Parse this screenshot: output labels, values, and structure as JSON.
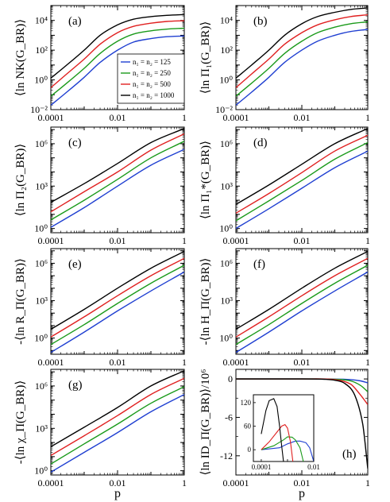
{
  "legend": [
    {
      "label": "n₁ = n₂ = 125",
      "color": "#1f3fd1"
    },
    {
      "label": "n₁ = n₂ = 250",
      "color": "#1a9a1a"
    },
    {
      "label": "n₁ = n₂ = 500",
      "color": "#e02020"
    },
    {
      "label": "n₁ = n₂ = 1000",
      "color": "#000000"
    }
  ],
  "xlabel": "p",
  "chart_data": [
    {
      "panel": "(a)",
      "type": "line",
      "ylabel": "⟨ln NK(G_BR)⟩",
      "xscale": "log",
      "yscale": "log",
      "xlim": [
        0.0001,
        1
      ],
      "ylim": [
        0.01,
        100000
      ],
      "xticks": [
        "0.0001",
        "0.01",
        "1"
      ],
      "yticks": [
        "10⁻²",
        "10⁰",
        "10²",
        "10⁴"
      ],
      "series": [
        {
          "name": "n₁ = n₂ = 125",
          "x": [
            0.0001,
            0.0003,
            0.001,
            0.003,
            0.01,
            0.03,
            0.1,
            0.3,
            1
          ],
          "y": [
            0.02,
            0.15,
            1.5,
            15,
            100,
            350,
            600,
            800,
            900
          ]
        },
        {
          "name": "n₁ = n₂ = 250",
          "x": [
            0.0001,
            0.0003,
            0.001,
            0.003,
            0.01,
            0.03,
            0.1,
            0.3,
            1
          ],
          "y": [
            0.08,
            0.6,
            6,
            60,
            400,
            1200,
            2000,
            2600,
            3000
          ]
        },
        {
          "name": "n₁ = n₂ = 500",
          "x": [
            0.0001,
            0.0003,
            0.001,
            0.003,
            0.01,
            0.03,
            0.1,
            0.3,
            1
          ],
          "y": [
            0.3,
            2.5,
            25,
            250,
            1500,
            4000,
            6500,
            8500,
            9500
          ]
        },
        {
          "name": "n₁ = n₂ = 1000",
          "x": [
            0.0001,
            0.0003,
            0.001,
            0.003,
            0.01,
            0.03,
            0.1,
            0.3,
            1
          ],
          "y": [
            1.3,
            10,
            100,
            1000,
            5000,
            12000,
            18000,
            22000,
            25000
          ]
        }
      ]
    },
    {
      "panel": "(b)",
      "type": "line",
      "ylabel": "⟨ln Π₁(G_BR)⟩",
      "xscale": "log",
      "yscale": "log",
      "xlim": [
        0.0001,
        1
      ],
      "ylim": [
        0.01,
        100000
      ],
      "xticks": [
        "0.0001",
        "0.01",
        "1"
      ],
      "yticks": [
        "10⁻²",
        "10⁰",
        "10²",
        "10⁴"
      ],
      "series": [
        {
          "name": "n₁ = n₂ = 125",
          "x": [
            0.0001,
            0.0003,
            0.001,
            0.003,
            0.01,
            0.03,
            0.1,
            0.3,
            1
          ],
          "y": [
            0.02,
            0.15,
            1.5,
            15,
            100,
            400,
            1000,
            1800,
            2500
          ]
        },
        {
          "name": "n₁ = n₂ = 250",
          "x": [
            0.0001,
            0.0003,
            0.001,
            0.003,
            0.01,
            0.03,
            0.1,
            0.3,
            1
          ],
          "y": [
            0.08,
            0.6,
            6,
            60,
            400,
            1500,
            3500,
            6000,
            8000
          ]
        },
        {
          "name": "n₁ = n₂ = 500",
          "x": [
            0.0001,
            0.0003,
            0.001,
            0.003,
            0.01,
            0.03,
            0.1,
            0.3,
            1
          ],
          "y": [
            0.3,
            2.5,
            25,
            250,
            1500,
            5000,
            11000,
            18000,
            24000
          ]
        },
        {
          "name": "n₁ = n₂ = 1000",
          "x": [
            0.0001,
            0.0003,
            0.001,
            0.003,
            0.01,
            0.03,
            0.1,
            0.3,
            1
          ],
          "y": [
            1.3,
            10,
            100,
            1000,
            6000,
            18000,
            35000,
            55000,
            70000
          ]
        }
      ]
    },
    {
      "panel": "(c)",
      "type": "line",
      "ylabel": "⟨ln Π₂(G_BR)⟩",
      "xscale": "log",
      "yscale": "log",
      "xlim": [
        0.0001,
        1
      ],
      "ylim": [
        0.5,
        15000000
      ],
      "xticks": [
        "0.0001",
        "0.01",
        "1"
      ],
      "yticks": [
        "10⁰",
        "10³",
        "10⁶"
      ],
      "series": [
        {
          "name": "n₁ = n₂ = 125",
          "x": [
            0.0001,
            0.001,
            0.01,
            0.1,
            1
          ],
          "y": [
            1.2,
            30,
            1000,
            30000,
            400000
          ]
        },
        {
          "name": "n₁ = n₂ = 250",
          "x": [
            0.0001,
            0.001,
            0.01,
            0.1,
            1
          ],
          "y": [
            4,
            100,
            3000,
            100000,
            1500000
          ]
        },
        {
          "name": "n₁ = n₂ = 500",
          "x": [
            0.0001,
            0.001,
            0.01,
            0.1,
            1
          ],
          "y": [
            15,
            400,
            10000,
            350000,
            5000000
          ]
        },
        {
          "name": "n₁ = n₂ = 1000",
          "x": [
            0.0001,
            0.001,
            0.01,
            0.1,
            1
          ],
          "y": [
            70,
            1500,
            40000,
            1200000,
            12000000
          ]
        }
      ]
    },
    {
      "panel": "(d)",
      "type": "line",
      "ylabel": "⟨ln Π₁*(G_BR)⟩",
      "xscale": "log",
      "yscale": "log",
      "xlim": [
        0.0001,
        1
      ],
      "ylim": [
        0.5,
        15000000
      ],
      "xticks": [
        "0.0001",
        "0.01",
        "1"
      ],
      "yticks": [
        "10⁰",
        "10³",
        "10⁶"
      ],
      "series": [
        {
          "name": "n₁ = n₂ = 125",
          "x": [
            0.0001,
            0.001,
            0.01,
            0.1,
            1
          ],
          "y": [
            1.0,
            25,
            700,
            20000,
            300000
          ]
        },
        {
          "name": "n₁ = n₂ = 250",
          "x": [
            0.0001,
            0.001,
            0.01,
            0.1,
            1
          ],
          "y": [
            3.5,
            90,
            2500,
            80000,
            1200000
          ]
        },
        {
          "name": "n₁ = n₂ = 500",
          "x": [
            0.0001,
            0.001,
            0.01,
            0.1,
            1
          ],
          "y": [
            12,
            300,
            9000,
            300000,
            4000000
          ]
        },
        {
          "name": "n₁ = n₂ = 1000",
          "x": [
            0.0001,
            0.001,
            0.01,
            0.1,
            1
          ],
          "y": [
            50,
            1200,
            35000,
            1000000,
            12000000
          ]
        }
      ]
    },
    {
      "panel": "(e)",
      "type": "line",
      "ylabel": "-⟨ln R_Π(G_BR)⟩",
      "xscale": "log",
      "yscale": "log",
      "xlim": [
        0.0001,
        1
      ],
      "ylim": [
        0.05,
        15000000
      ],
      "xticks": [
        "0.0001",
        "0.01",
        "1"
      ],
      "yticks": [
        "10⁰",
        "10³",
        "10⁶"
      ],
      "series": [
        {
          "name": "n₁ = n₂ = 125",
          "x": [
            0.0001,
            0.001,
            0.01,
            0.1,
            1
          ],
          "y": [
            0.07,
            3,
            150,
            6000,
            200000
          ]
        },
        {
          "name": "n₁ = n₂ = 250",
          "x": [
            0.0001,
            0.001,
            0.01,
            0.1,
            1
          ],
          "y": [
            0.3,
            12,
            600,
            25000,
            700000
          ]
        },
        {
          "name": "n₁ = n₂ = 500",
          "x": [
            0.0001,
            0.001,
            0.01,
            0.1,
            1
          ],
          "y": [
            1.2,
            50,
            2500,
            100000,
            2500000
          ]
        },
        {
          "name": "n₁ = n₂ = 1000",
          "x": [
            0.0001,
            0.001,
            0.01,
            0.1,
            1
          ],
          "y": [
            5,
            200,
            10000,
            400000,
            9000000
          ]
        }
      ]
    },
    {
      "panel": "(f)",
      "type": "line",
      "ylabel": "-⟨ln H_Π(G_BR)⟩",
      "xscale": "log",
      "yscale": "log",
      "xlim": [
        0.0001,
        1
      ],
      "ylim": [
        0.05,
        15000000
      ],
      "xticks": [
        "0.0001",
        "0.01",
        "1"
      ],
      "yticks": [
        "10⁰",
        "10³",
        "10⁶"
      ],
      "series": [
        {
          "name": "n₁ = n₂ = 125",
          "x": [
            0.0001,
            0.001,
            0.01,
            0.1,
            1
          ],
          "y": [
            0.07,
            3,
            150,
            6000,
            200000
          ]
        },
        {
          "name": "n₁ = n₂ = 250",
          "x": [
            0.0001,
            0.001,
            0.01,
            0.1,
            1
          ],
          "y": [
            0.3,
            12,
            600,
            25000,
            700000
          ]
        },
        {
          "name": "n₁ = n₂ = 500",
          "x": [
            0.0001,
            0.001,
            0.01,
            0.1,
            1
          ],
          "y": [
            1.2,
            50,
            2500,
            100000,
            2500000
          ]
        },
        {
          "name": "n₁ = n₂ = 1000",
          "x": [
            0.0001,
            0.001,
            0.01,
            0.1,
            1
          ],
          "y": [
            5,
            200,
            10000,
            400000,
            9000000
          ]
        }
      ]
    },
    {
      "panel": "(g)",
      "type": "line",
      "ylabel": "-⟨ln χ_Π(G_BR)⟩",
      "xscale": "log",
      "yscale": "log",
      "xlim": [
        0.0001,
        1
      ],
      "ylim": [
        0.5,
        15000000
      ],
      "xticks": [
        "0.0001",
        "0.01",
        "1"
      ],
      "yticks": [
        "10⁰",
        "10³",
        "10⁶"
      ],
      "series": [
        {
          "name": "n₁ = n₂ = 125",
          "x": [
            0.0001,
            0.001,
            0.01,
            0.1,
            1
          ],
          "y": [
            0.8,
            20,
            500,
            15000,
            250000
          ]
        },
        {
          "name": "n₁ = n₂ = 250",
          "x": [
            0.0001,
            0.001,
            0.01,
            0.1,
            1
          ],
          "y": [
            3,
            80,
            2000,
            60000,
            900000
          ]
        },
        {
          "name": "n₁ = n₂ = 500",
          "x": [
            0.0001,
            0.001,
            0.01,
            0.1,
            1
          ],
          "y": [
            12,
            300,
            8000,
            250000,
            3500000
          ]
        },
        {
          "name": "n₁ = n₂ = 1000",
          "x": [
            0.0001,
            0.001,
            0.01,
            0.1,
            1
          ],
          "y": [
            50,
            1200,
            30000,
            1000000,
            12000000
          ]
        }
      ]
    },
    {
      "panel": "(h)",
      "type": "line",
      "ylabel": "⟨ln ID_Π(G_BR)⟩/10⁶",
      "xscale": "log",
      "yscale": "linear",
      "xlim": [
        0.0001,
        1
      ],
      "ylim": [
        -15,
        1.5
      ],
      "xticks": [
        "0.0001",
        "0.01",
        "1"
      ],
      "yticks": [
        "-12",
        "-6",
        "0"
      ],
      "series": [
        {
          "name": "n₁ = n₂ = 125",
          "x": [
            0.0001,
            0.01,
            0.1,
            0.3,
            0.6,
            1
          ],
          "y": [
            0,
            0,
            -0.02,
            -0.1,
            -0.3,
            -0.6
          ]
        },
        {
          "name": "n₁ = n₂ = 250",
          "x": [
            0.0001,
            0.01,
            0.1,
            0.3,
            0.6,
            1
          ],
          "y": [
            0,
            0,
            -0.05,
            -0.3,
            -1.0,
            -2.0
          ]
        },
        {
          "name": "n₁ = n₂ = 500",
          "x": [
            0.0001,
            0.01,
            0.1,
            0.3,
            0.6,
            1
          ],
          "y": [
            0,
            0,
            -0.1,
            -0.8,
            -2.5,
            -4.0
          ]
        },
        {
          "name": "n₁ = n₂ = 1000",
          "x": [
            0.0001,
            0.01,
            0.05,
            0.1,
            0.2,
            0.4,
            0.7,
            1
          ],
          "y": [
            0,
            0,
            -0.05,
            -0.2,
            -0.7,
            -2.5,
            -7,
            -14
          ]
        }
      ],
      "inset": {
        "xlim": [
          5e-05,
          0.01
        ],
        "ylim": [
          -30,
          140
        ],
        "xticks": [
          "0.0001",
          "0.01"
        ],
        "yticks": [
          "120",
          "60",
          "0"
        ],
        "series": [
          {
            "name": "n₁ = n₂ = 125",
            "x": [
              0.0001,
              0.0005,
              0.001,
              0.002,
              0.003,
              0.005,
              0.007,
              0.01
            ],
            "y": [
              0,
              5,
              15,
              22,
              22,
              18,
              5,
              -30
            ]
          },
          {
            "name": "n₁ = n₂ = 250",
            "x": [
              0.0001,
              0.0003,
              0.0007,
              0.001,
              0.0015,
              0.002,
              0.003,
              0.004
            ],
            "y": [
              0,
              10,
              25,
              33,
              32,
              25,
              5,
              -30
            ]
          },
          {
            "name": "n₁ = n₂ = 500",
            "x": [
              0.0001,
              0.0002,
              0.0004,
              0.0006,
              0.0008,
              0.001,
              0.0013,
              0.0016
            ],
            "y": [
              0,
              20,
              45,
              60,
              64,
              55,
              20,
              -30
            ]
          },
          {
            "name": "n₁ = n₂ = 1000",
            "x": [
              0.0001,
              0.00015,
              0.0002,
              0.0003,
              0.0004,
              0.0005,
              0.0006,
              0.0007
            ],
            "y": [
              40,
              100,
              125,
              130,
              110,
              60,
              10,
              -30
            ]
          }
        ]
      }
    }
  ]
}
